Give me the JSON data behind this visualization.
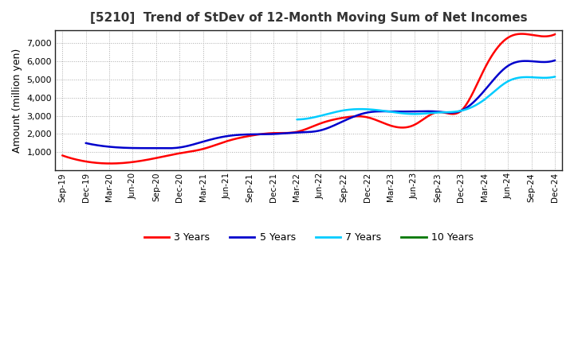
{
  "title": "[5210]  Trend of StDev of 12-Month Moving Sum of Net Incomes",
  "ylabel": "Amount (million yen)",
  "background_color": "#ffffff",
  "plot_bg_color": "#ffffff",
  "grid_color": "#aaaaaa",
  "x_labels": [
    "Sep-19",
    "Dec-19",
    "Mar-20",
    "Jun-20",
    "Sep-20",
    "Dec-20",
    "Mar-21",
    "Jun-21",
    "Sep-21",
    "Dec-21",
    "Mar-22",
    "Jun-22",
    "Sep-22",
    "Dec-22",
    "Mar-23",
    "Jun-23",
    "Sep-23",
    "Dec-23",
    "Mar-24",
    "Jun-24",
    "Sep-24",
    "Dec-24"
  ],
  "ylim": [
    0,
    7700
  ],
  "yticks": [
    1000,
    2000,
    3000,
    4000,
    5000,
    6000,
    7000
  ],
  "series": {
    "3 Years": {
      "color": "#ff0000",
      "values": [
        820,
        490,
        380,
        460,
        680,
        940,
        1180,
        1600,
        1900,
        2050,
        2120,
        2580,
        2900,
        2920,
        2460,
        2500,
        3200,
        3280,
        5600,
        7300,
        7450,
        7480
      ]
    },
    "5 Years": {
      "color": "#0000cc",
      "values": [
        null,
        1500,
        1300,
        1230,
        1220,
        1260,
        1580,
        1880,
        1980,
        2000,
        2080,
        2200,
        2720,
        3180,
        3240,
        3240,
        3230,
        3280,
        4400,
        5750,
        6000,
        6050
      ]
    },
    "7 Years": {
      "color": "#00ccff",
      "values": [
        null,
        null,
        null,
        null,
        null,
        null,
        null,
        null,
        null,
        null,
        2800,
        3000,
        3300,
        3360,
        3220,
        3100,
        3180,
        3280,
        3900,
        4900,
        5120,
        5150
      ]
    },
    "10 Years": {
      "color": "#007700",
      "values": [
        null,
        null,
        null,
        null,
        null,
        null,
        null,
        null,
        null,
        null,
        null,
        null,
        null,
        null,
        null,
        null,
        null,
        null,
        null,
        null,
        null,
        null
      ]
    }
  },
  "legend": {
    "labels": [
      "3 Years",
      "5 Years",
      "7 Years",
      "10 Years"
    ],
    "colors": [
      "#ff0000",
      "#0000cc",
      "#00ccff",
      "#007700"
    ]
  }
}
